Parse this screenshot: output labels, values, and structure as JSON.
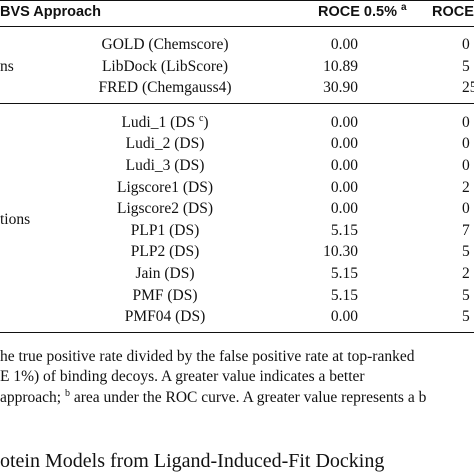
{
  "table": {
    "header": {
      "approach": "BVS Approach",
      "roce05": "ROCE 0.5%",
      "roce05_sup": "a",
      "roce1": "ROCE"
    },
    "groups": [
      {
        "label": "ns",
        "rows": [
          {
            "method": "GOLD (Chemscore)",
            "roce05": "0.00",
            "roce1": "0"
          },
          {
            "method": "LibDock (LibScore)",
            "roce05": "10.89",
            "roce1": "5"
          },
          {
            "method": "FRED (Chemgauss4)",
            "roce05": "30.90",
            "roce1": "25"
          }
        ]
      },
      {
        "label": "tions",
        "rows": [
          {
            "method": "Ludi_1 (DS",
            "method_sup": "c",
            "method_end": ")",
            "roce05": "0.00",
            "roce1": "0"
          },
          {
            "method": "Ludi_2 (DS)",
            "roce05": "0.00",
            "roce1": "0"
          },
          {
            "method": "Ludi_3 (DS)",
            "roce05": "0.00",
            "roce1": "0"
          },
          {
            "method": "Ligscore1 (DS)",
            "roce05": "0.00",
            "roce1": "2"
          },
          {
            "method": "Ligscore2 (DS)",
            "roce05": "0.00",
            "roce1": "0"
          },
          {
            "method": "PLP1 (DS)",
            "roce05": "5.15",
            "roce1": "7"
          },
          {
            "method": "PLP2 (DS)",
            "roce05": "10.30",
            "roce1": "5"
          },
          {
            "method": "Jain (DS)",
            "roce05": "5.15",
            "roce1": "2"
          },
          {
            "method": "PMF (DS)",
            "roce05": "5.15",
            "roce1": "5"
          },
          {
            "method": "PMF04 (DS)",
            "roce05": "0.00",
            "roce1": "5"
          }
        ]
      }
    ]
  },
  "footnotes": [
    {
      "text": "he true positive rate divided by the false positive rate at top-ranked"
    },
    {
      "text": "E 1%) of binding decoys.  A greater value indicates a better"
    },
    {
      "text": "approach; ",
      "sup": "b",
      "rest": " area under the ROC curve. A greater value represents a b"
    }
  ],
  "section_heading": "otein Models from Ligand-Induced-Fit Docking"
}
